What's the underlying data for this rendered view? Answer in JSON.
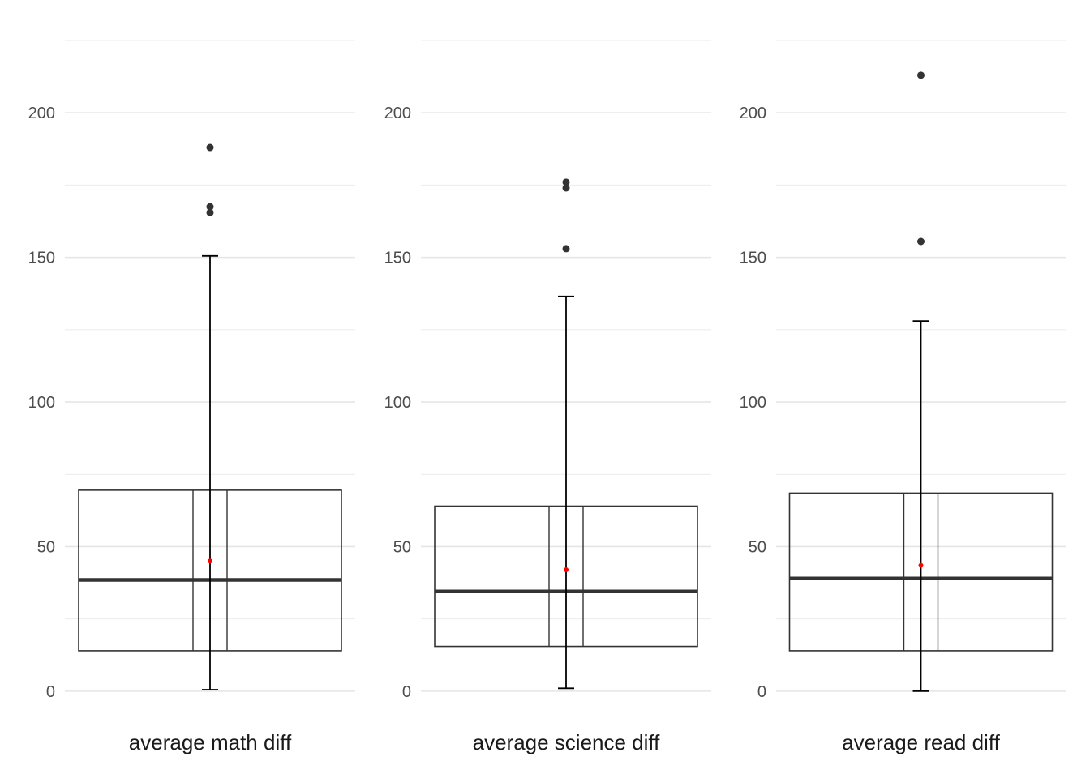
{
  "chart_data": {
    "type": "boxplot",
    "ylim": [
      -2,
      225
    ],
    "y_ticks": [
      0,
      50,
      100,
      150,
      200
    ],
    "y_minor_ticks": [
      25,
      75,
      125,
      175,
      225
    ],
    "grid": true,
    "mean_color": "#ff0000",
    "box_color": "#333333",
    "whisker_color": "#000000",
    "outlier_color": "#333333",
    "panels": [
      {
        "label": "average math diff",
        "whisker_low": 0.5,
        "q1": 14,
        "median": 38.5,
        "q3": 69.5,
        "whisker_high": 150.5,
        "mean": 45,
        "outliers": [
          165.5,
          167.5,
          188
        ]
      },
      {
        "label": "average science diff",
        "whisker_low": 1,
        "q1": 15.5,
        "median": 34.5,
        "q3": 64,
        "whisker_high": 136.5,
        "mean": 42,
        "outliers": [
          153,
          174,
          176
        ]
      },
      {
        "label": "average read diff",
        "whisker_low": 0,
        "q1": 14,
        "median": 39,
        "q3": 68.5,
        "whisker_high": 128,
        "mean": 43.5,
        "outliers": [
          155.5,
          213
        ]
      }
    ]
  }
}
